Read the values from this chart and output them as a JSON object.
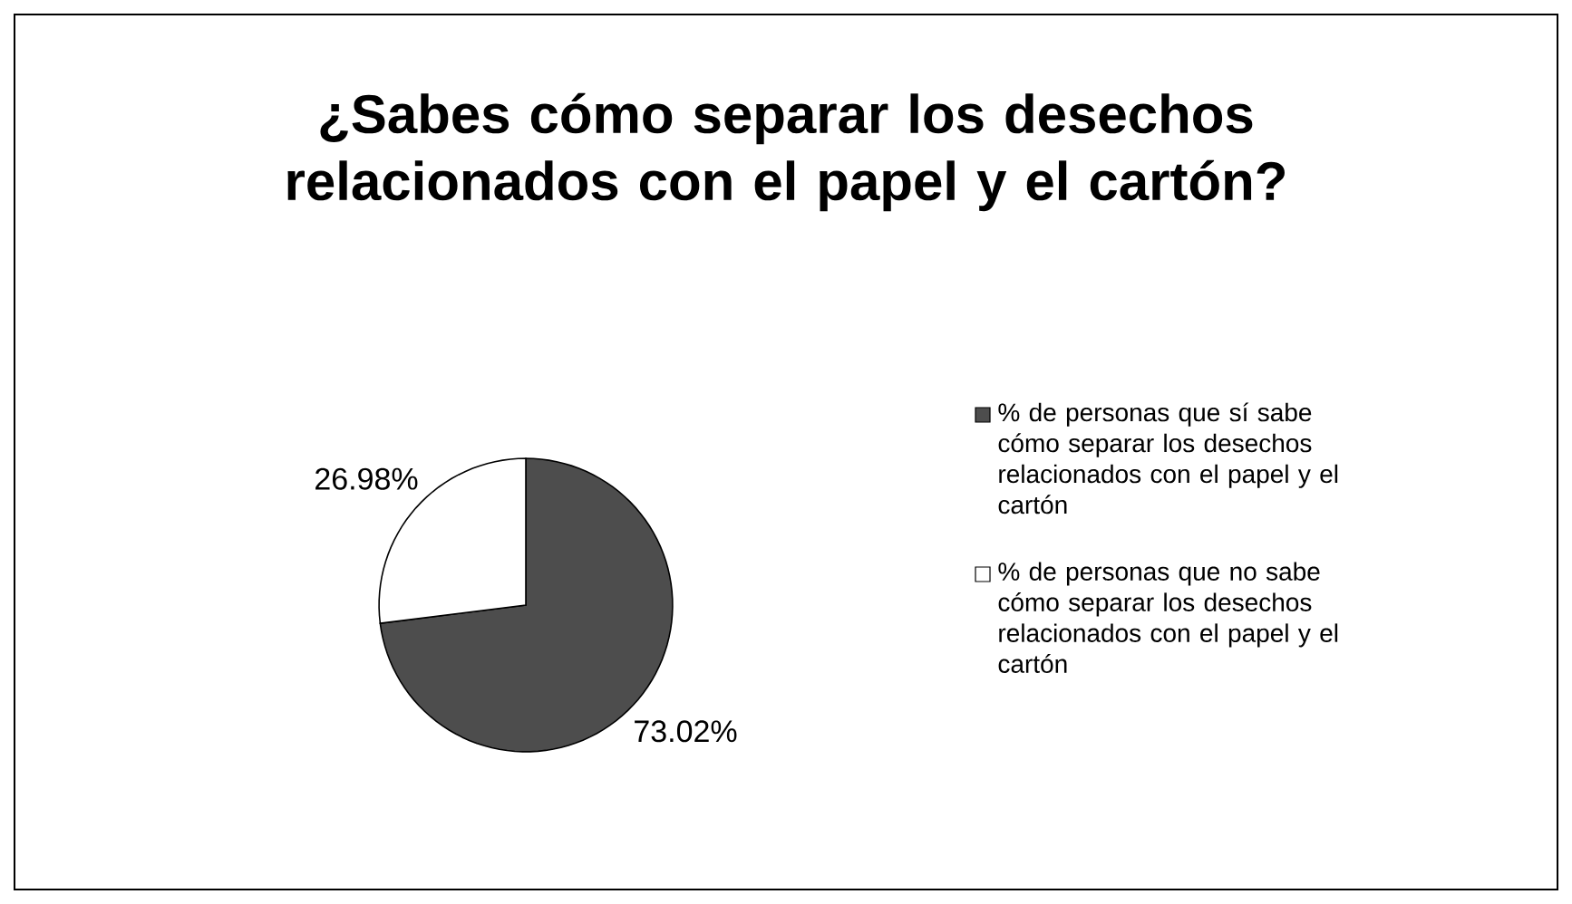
{
  "chart_data": {
    "type": "pie",
    "title": "¿Sabes cómo separar los desechos relacionados con el papel y el cartón?",
    "categories": [
      "% de personas que sí sabe cómo separar los desechos relacionados con el papel y el cartón",
      "% de personas que no sabe cómo separar los desechos relacionados con el papel y el cartón"
    ],
    "values": [
      73.02,
      26.98
    ],
    "colors": [
      "#4d4d4d",
      "#ffffff"
    ],
    "value_labels": [
      "73.02%",
      "26.98%"
    ],
    "legend": "right"
  }
}
